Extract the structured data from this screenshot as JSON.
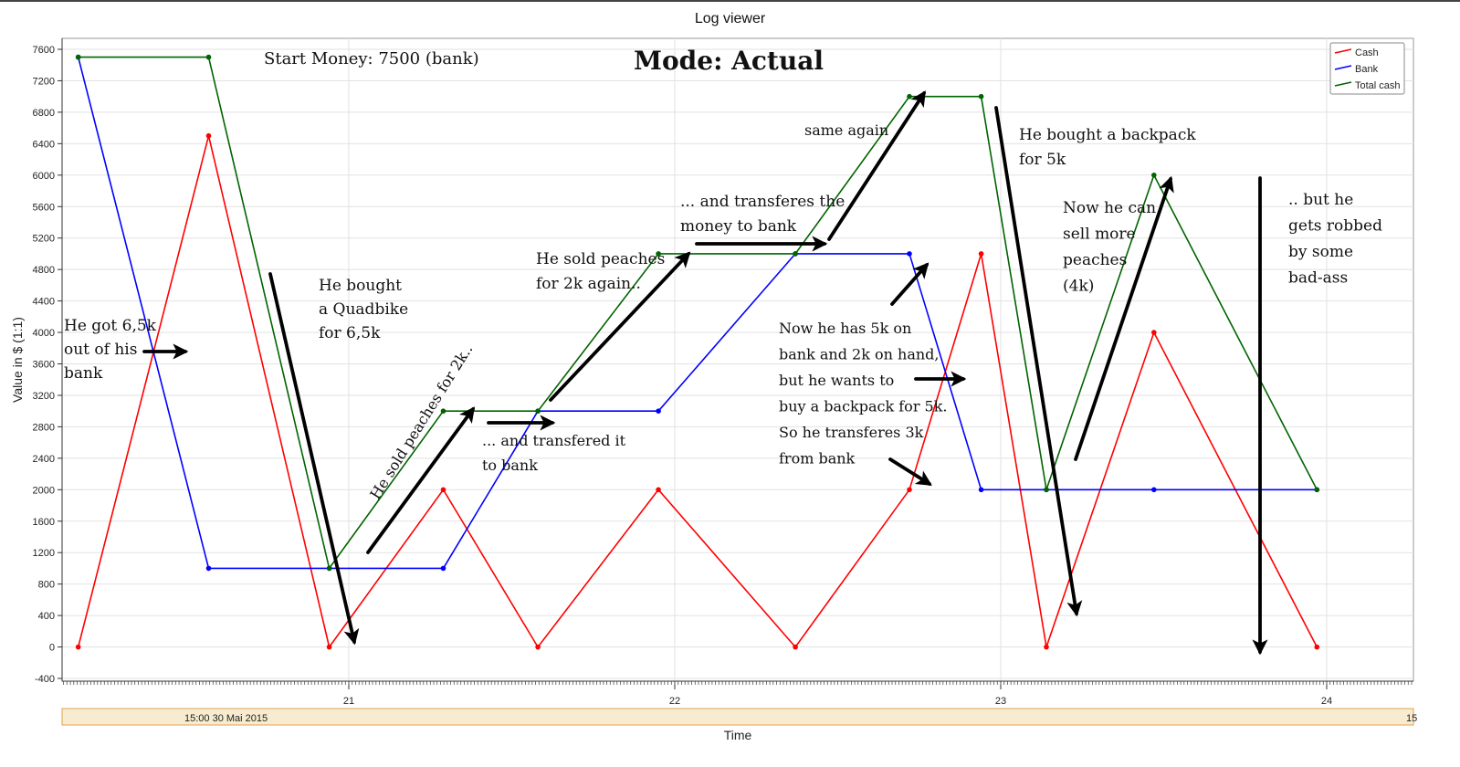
{
  "window": {
    "title": "Log viewer"
  },
  "chart_data": {
    "type": "line",
    "xlabel": "Time",
    "ylabel": "Value in $ (1:1)",
    "ylim": [
      -400,
      7600
    ],
    "yticks": [
      -400,
      0,
      400,
      800,
      1200,
      1600,
      2000,
      2400,
      2800,
      3200,
      3600,
      4000,
      4400,
      4800,
      5200,
      5600,
      6000,
      6400,
      6800,
      7200,
      7600
    ],
    "xlim": [
      20.2,
      24.27
    ],
    "xticks": [
      {
        "x": 21,
        "label": "21"
      },
      {
        "x": 22,
        "label": "22"
      },
      {
        "x": 23,
        "label": "23"
      },
      {
        "x": 24,
        "label": "24"
      }
    ],
    "date_band": {
      "left": "15:00 30 Mai 2015",
      "right": "15"
    },
    "grid": true,
    "legend_placement": "top-right",
    "series": [
      {
        "name": "Cash",
        "color": "#ff0000",
        "points": [
          [
            20.17,
            0
          ],
          [
            20.57,
            6500
          ],
          [
            20.94,
            0
          ],
          [
            21.29,
            2000
          ],
          [
            21.58,
            0
          ],
          [
            21.95,
            2000
          ],
          [
            22.37,
            0
          ],
          [
            22.72,
            2000
          ],
          [
            22.94,
            5000
          ],
          [
            23.14,
            0
          ],
          [
            23.47,
            4000
          ],
          [
            23.97,
            0
          ]
        ]
      },
      {
        "name": "Bank",
        "color": "#0000ff",
        "points": [
          [
            20.17,
            7500
          ],
          [
            20.57,
            1000
          ],
          [
            20.94,
            1000
          ],
          [
            21.29,
            1000
          ],
          [
            21.58,
            3000
          ],
          [
            21.95,
            3000
          ],
          [
            22.37,
            5000
          ],
          [
            22.72,
            5000
          ],
          [
            22.94,
            2000
          ],
          [
            23.14,
            2000
          ],
          [
            23.47,
            2000
          ],
          [
            23.97,
            2000
          ]
        ]
      },
      {
        "name": "Total cash",
        "color": "#006400",
        "points": [
          [
            20.17,
            7500
          ],
          [
            20.57,
            7500
          ],
          [
            20.94,
            1000
          ],
          [
            21.29,
            3000
          ],
          [
            21.58,
            3000
          ],
          [
            21.95,
            5000
          ],
          [
            22.37,
            5000
          ],
          [
            22.72,
            7000
          ],
          [
            22.94,
            7000
          ],
          [
            23.14,
            2000
          ],
          [
            23.47,
            6000
          ],
          [
            23.97,
            2000
          ]
        ]
      }
    ],
    "annotations": [
      {
        "id": "start-money",
        "lines": [
          "Start Money: 7500 (bank)"
        ],
        "color": "#1a2fb5"
      },
      {
        "id": "mode",
        "lines": [
          "Mode: Actual"
        ],
        "color": "#111111"
      },
      {
        "id": "got-65k",
        "lines": [
          "He got 6,5k",
          "out of his",
          "bank"
        ],
        "color": "#111111"
      },
      {
        "id": "bought-quadbike",
        "lines": [
          "He bought",
          "a Quadbike",
          "for 6,5k"
        ],
        "color": "#111111"
      },
      {
        "id": "sold-peaches-2k",
        "lines": [
          "He sold peaches for 2k.."
        ],
        "color": "#111111"
      },
      {
        "id": "transfered-to-bank",
        "lines": [
          "... and transfered it",
          "to bank"
        ],
        "color": "#111111"
      },
      {
        "id": "sold-peaches-again",
        "lines": [
          "He sold peaches",
          "for 2k again.."
        ],
        "color": "#111111"
      },
      {
        "id": "transferes-money",
        "lines": [
          "... and transferes the",
          "money to bank"
        ],
        "color": "#111111"
      },
      {
        "id": "same-again",
        "lines": [
          "same again"
        ],
        "color": "#111111"
      },
      {
        "id": "now-5k-on-bank",
        "lines": [
          "Now he has 5k on",
          "bank and 2k on hand,",
          "but he wants to",
          "buy a backpack for 5k.",
          "So he transferes 3k",
          "from bank"
        ],
        "color": "#111111"
      },
      {
        "id": "bought-backpack",
        "lines": [
          "He bought a backpack",
          "for 5k"
        ],
        "color": "#111111"
      },
      {
        "id": "sell-more-peaches",
        "lines": [
          "Now he can",
          "sell more",
          "peaches",
          "(4k)"
        ],
        "color": "#111111"
      },
      {
        "id": "robbed",
        "lines": [
          ".. but he",
          "gets robbed",
          "by some",
          "bad-ass"
        ],
        "color": "#111111"
      }
    ]
  }
}
